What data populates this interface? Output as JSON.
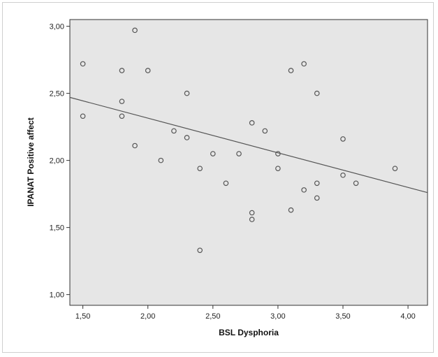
{
  "chart_data": {
    "type": "scatter",
    "title": "",
    "xlabel": "BSL Dysphoria",
    "ylabel": "IPANAT Positive affect",
    "xlim": [
      1.4,
      4.15
    ],
    "ylim": [
      0.92,
      3.05
    ],
    "x_ticks": [
      1.5,
      2.0,
      2.5,
      3.0,
      3.5,
      4.0
    ],
    "x_tick_labels": [
      "1,50",
      "2,00",
      "2,50",
      "3,00",
      "3,50",
      "4,00"
    ],
    "y_ticks": [
      1.0,
      1.5,
      2.0,
      2.5,
      3.0
    ],
    "y_tick_labels": [
      "1,00",
      "1,50",
      "2,00",
      "2,50",
      "3,00"
    ],
    "grid": false,
    "legend": "none",
    "plot_background": "#e6e6e6",
    "marker_color": "#555555",
    "fit_line": {
      "type": "linear",
      "x": [
        1.4,
        4.15
      ],
      "y": [
        2.47,
        1.76
      ],
      "color": "#555555"
    },
    "points": [
      {
        "x": 1.5,
        "y": 2.72
      },
      {
        "x": 1.5,
        "y": 2.33
      },
      {
        "x": 1.8,
        "y": 2.67
      },
      {
        "x": 1.8,
        "y": 2.44
      },
      {
        "x": 1.8,
        "y": 2.33
      },
      {
        "x": 1.9,
        "y": 2.97
      },
      {
        "x": 1.9,
        "y": 2.11
      },
      {
        "x": 2.0,
        "y": 2.67
      },
      {
        "x": 2.1,
        "y": 2.0
      },
      {
        "x": 2.2,
        "y": 2.22
      },
      {
        "x": 2.3,
        "y": 2.5
      },
      {
        "x": 2.3,
        "y": 2.17
      },
      {
        "x": 2.4,
        "y": 1.94
      },
      {
        "x": 2.4,
        "y": 1.33
      },
      {
        "x": 2.5,
        "y": 2.05
      },
      {
        "x": 2.6,
        "y": 1.83
      },
      {
        "x": 2.7,
        "y": 2.05
      },
      {
        "x": 2.8,
        "y": 2.28
      },
      {
        "x": 2.8,
        "y": 1.61
      },
      {
        "x": 2.8,
        "y": 1.56
      },
      {
        "x": 2.9,
        "y": 2.22
      },
      {
        "x": 3.0,
        "y": 2.05
      },
      {
        "x": 3.0,
        "y": 1.94
      },
      {
        "x": 3.1,
        "y": 2.67
      },
      {
        "x": 3.1,
        "y": 1.63
      },
      {
        "x": 3.2,
        "y": 2.72
      },
      {
        "x": 3.2,
        "y": 1.78
      },
      {
        "x": 3.3,
        "y": 2.5
      },
      {
        "x": 3.3,
        "y": 1.83
      },
      {
        "x": 3.3,
        "y": 1.72
      },
      {
        "x": 3.5,
        "y": 2.16
      },
      {
        "x": 3.5,
        "y": 1.89
      },
      {
        "x": 3.6,
        "y": 1.83
      },
      {
        "x": 3.9,
        "y": 1.94
      }
    ]
  }
}
